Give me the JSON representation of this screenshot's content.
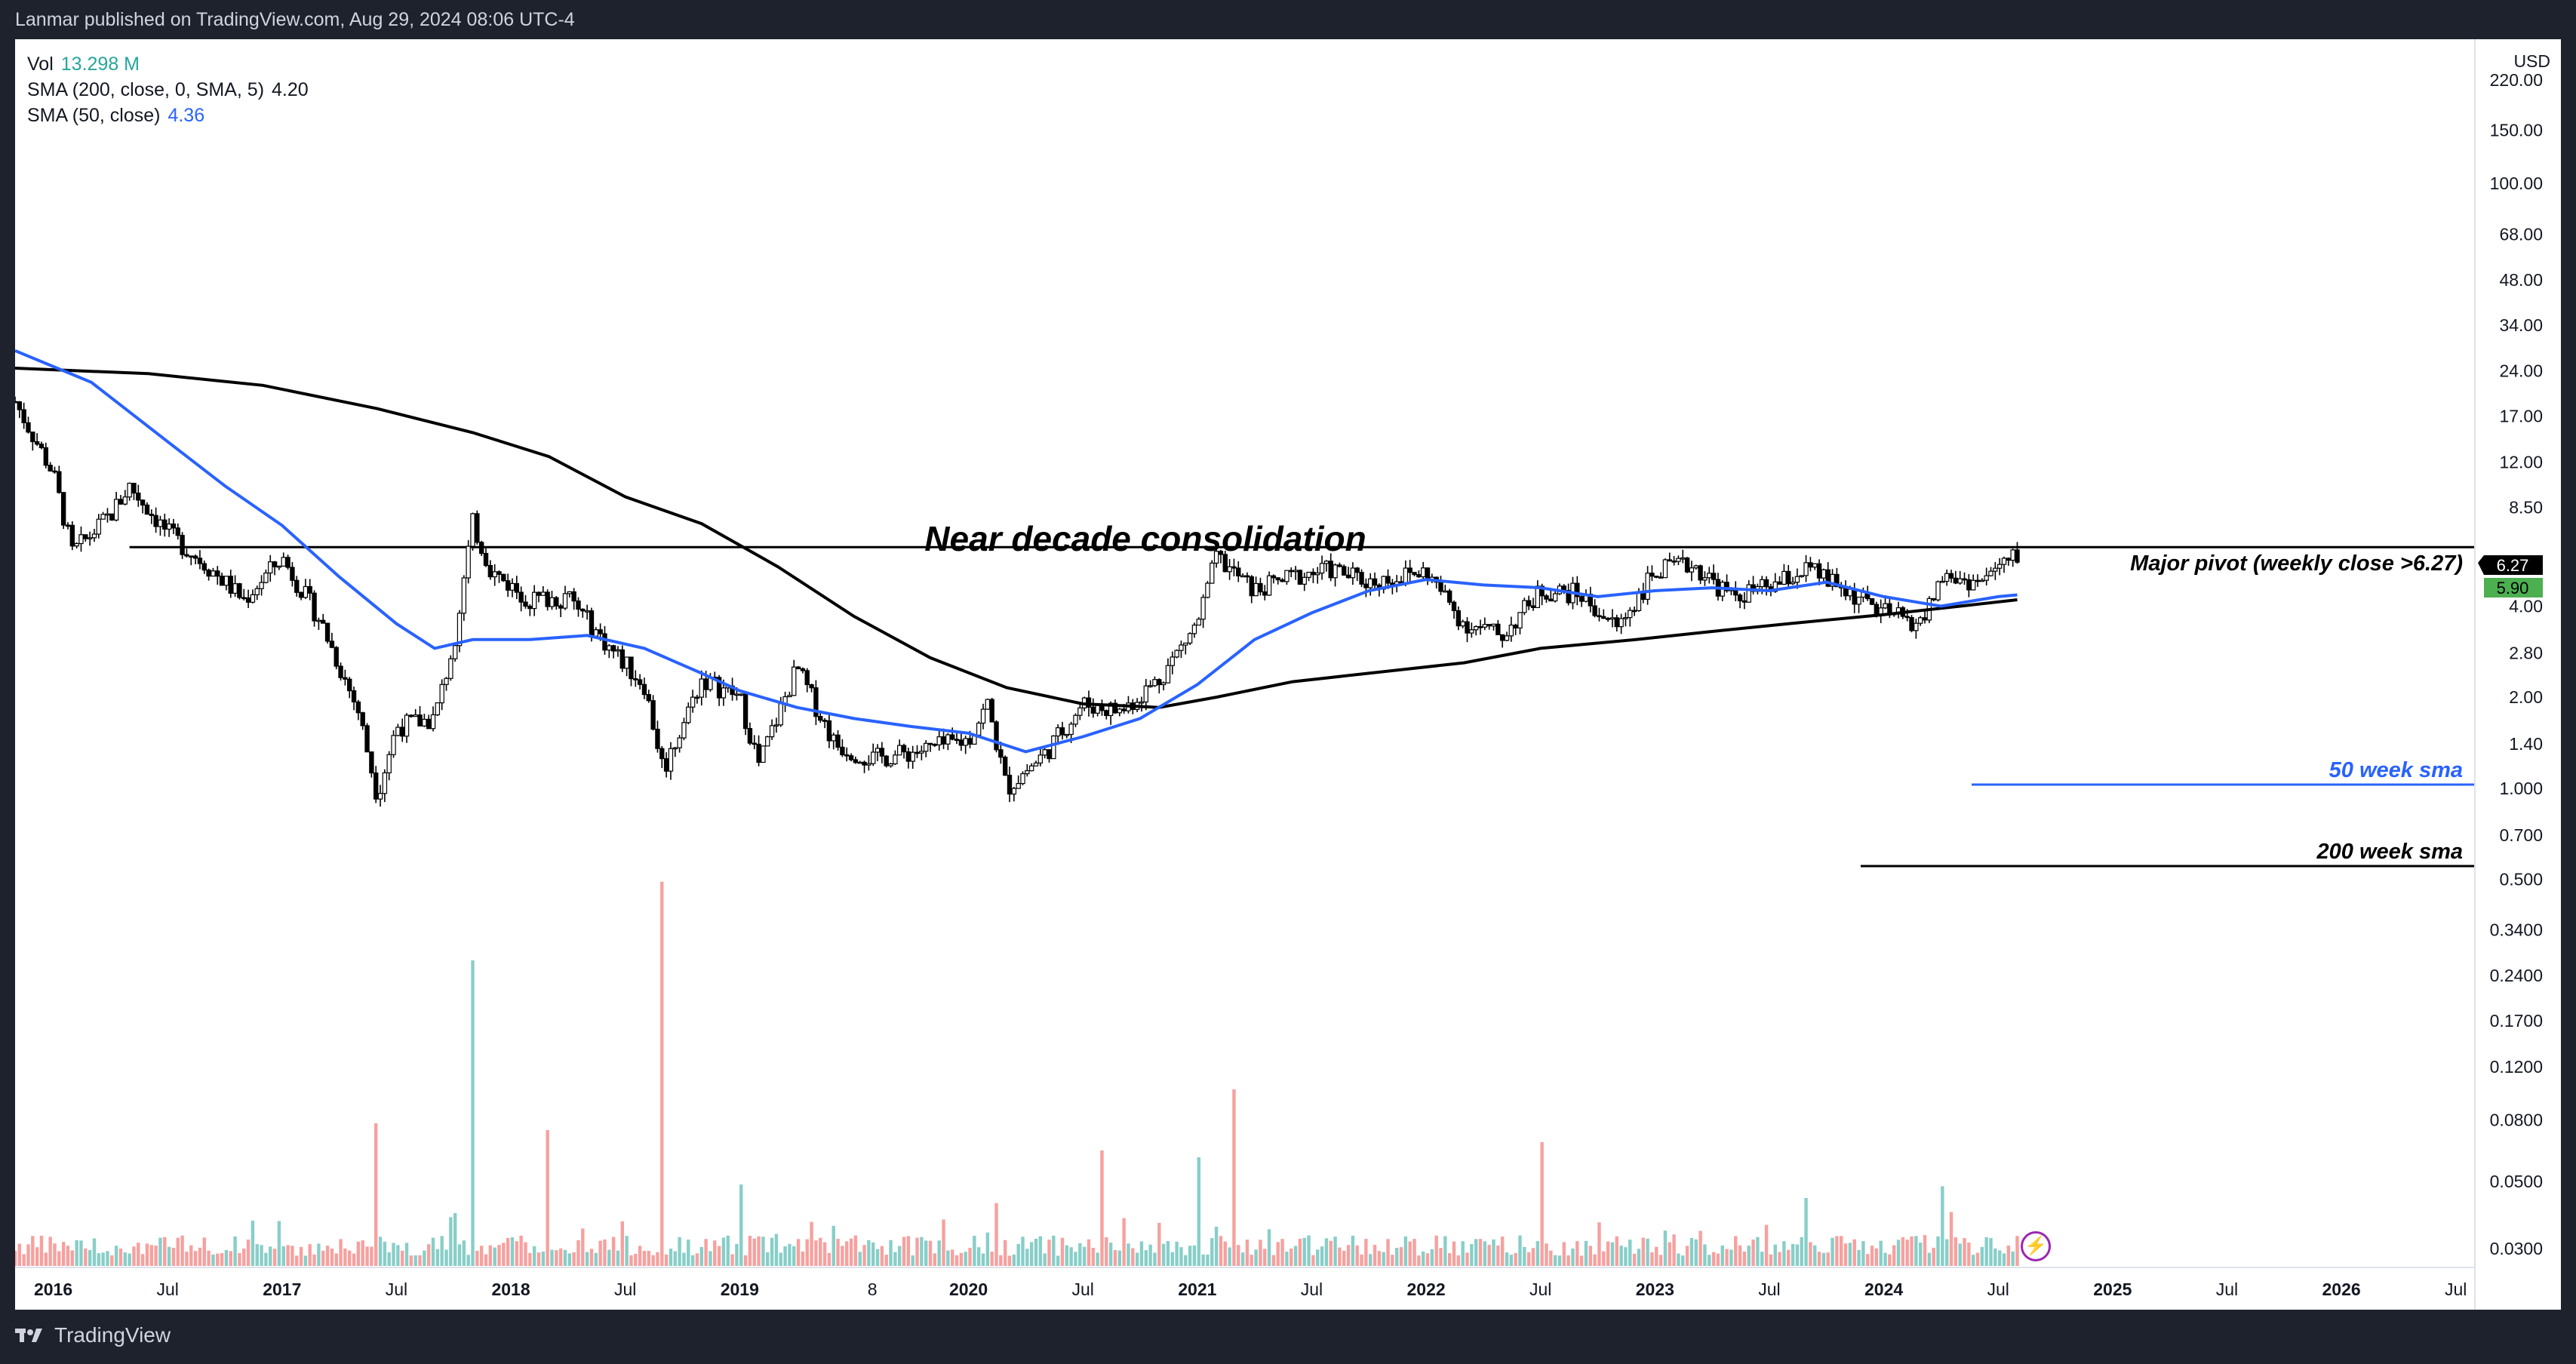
{
  "header": {
    "publisher_line": "Lanmar published on TradingView.com, Aug 29, 2024 08:06 UTC-4"
  },
  "footer": {
    "brand": "TradingView"
  },
  "legend": {
    "vol_label": "Vol",
    "vol_value": "13.298 M",
    "sma200_label": "SMA (200, close, 0, SMA, 5)",
    "sma200_value": "4.20",
    "sma50_label": "SMA (50, close)",
    "sma50_value": "4.36"
  },
  "price_axis": {
    "currency": "USD",
    "ticks": [
      "220.00",
      "150.00",
      "100.00",
      "68.00",
      "48.00",
      "34.00",
      "24.00",
      "17.00",
      "12.00",
      "8.50",
      "4.00",
      "2.80",
      "2.00",
      "1.40",
      "1.000",
      "0.700",
      "0.500",
      "0.3400",
      "0.2400",
      "0.1700",
      "0.1200",
      "0.0800",
      "0.0500",
      "0.0300"
    ],
    "last_price_label": "6.27",
    "current_label": "5.90"
  },
  "time_axis": {
    "labels": [
      "2016",
      "Jul",
      "2017",
      "Jul",
      "2018",
      "Jul",
      "2019",
      "8",
      "2020",
      "Jul",
      "2021",
      "Jul",
      "2022",
      "Jul",
      "2023",
      "Jul",
      "2024",
      "Jul",
      "2025",
      "Jul",
      "2026",
      "Jul"
    ],
    "bold_labels": [
      "2016",
      "2017",
      "2018",
      "2019",
      "2020",
      "2021",
      "2022",
      "2023",
      "2024",
      "2025",
      "2026"
    ]
  },
  "annotations": {
    "title": "Near decade consolidation",
    "pivot": "Major pivot (weekly close >6.27)",
    "sma50_note": "50 week sma",
    "sma200_note": "200 week sma"
  },
  "colors": {
    "up": "#26a69a",
    "down": "#ef5350",
    "sma50": "#2962ff",
    "sma200": "#000000",
    "pivot_badge": "#000000",
    "current_badge": "#4caf50"
  },
  "chart_data": {
    "type": "line",
    "title": "Near decade consolidation",
    "y_scale": "log",
    "ylim": [
      0.026,
      300
    ],
    "xlim": [
      "2015-11",
      "2026-08"
    ],
    "pivot_level": 6.27,
    "series": [
      {
        "name": "SMA (50, close)",
        "points": [
          [
            "2015-11",
            28
          ],
          [
            "2016-03",
            22
          ],
          [
            "2016-07",
            14
          ],
          [
            "2016-10",
            10
          ],
          [
            "2017-01",
            7.4
          ],
          [
            "2017-04",
            5
          ],
          [
            "2017-07",
            3.5
          ],
          [
            "2017-09",
            2.9
          ],
          [
            "2017-11",
            3.1
          ],
          [
            "2018-02",
            3.1
          ],
          [
            "2018-05",
            3.2
          ],
          [
            "2018-08",
            2.9
          ],
          [
            "2018-11",
            2.4
          ],
          [
            "2019-01",
            2.1
          ],
          [
            "2019-04",
            1.85
          ],
          [
            "2019-07",
            1.7
          ],
          [
            "2019-10",
            1.6
          ],
          [
            "2020-01",
            1.52
          ],
          [
            "2020-04",
            1.32
          ],
          [
            "2020-07",
            1.48
          ],
          [
            "2020-10",
            1.7
          ],
          [
            "2021-01",
            2.2
          ],
          [
            "2021-04",
            3.1
          ],
          [
            "2021-07",
            3.8
          ],
          [
            "2021-10",
            4.5
          ],
          [
            "2022-01",
            4.9
          ],
          [
            "2022-04",
            4.7
          ],
          [
            "2022-07",
            4.6
          ],
          [
            "2022-10",
            4.3
          ],
          [
            "2023-01",
            4.5
          ],
          [
            "2023-04",
            4.6
          ],
          [
            "2023-07",
            4.5
          ],
          [
            "2023-10",
            4.8
          ],
          [
            "2024-01",
            4.3
          ],
          [
            "2024-04",
            4.0
          ],
          [
            "2024-07",
            4.3
          ],
          [
            "2024-08",
            4.36
          ]
        ]
      },
      {
        "name": "SMA (200, close, 0, SMA, 5)",
        "points": [
          [
            "2015-11",
            24.5
          ],
          [
            "2016-06",
            23.5
          ],
          [
            "2016-12",
            21.5
          ],
          [
            "2017-06",
            18
          ],
          [
            "2017-11",
            15
          ],
          [
            "2018-03",
            12.5
          ],
          [
            "2018-07",
            9.2
          ],
          [
            "2018-11",
            7.5
          ],
          [
            "2019-03",
            5.4
          ],
          [
            "2019-07",
            3.7
          ],
          [
            "2019-11",
            2.7
          ],
          [
            "2020-03",
            2.15
          ],
          [
            "2020-07",
            1.9
          ],
          [
            "2020-11",
            1.85
          ],
          [
            "2021-02",
            2.0
          ],
          [
            "2021-06",
            2.25
          ],
          [
            "2021-10",
            2.4
          ],
          [
            "2022-03",
            2.6
          ],
          [
            "2022-07",
            2.9
          ],
          [
            "2022-12",
            3.1
          ],
          [
            "2023-04",
            3.3
          ],
          [
            "2023-08",
            3.5
          ],
          [
            "2024-01",
            3.75
          ],
          [
            "2024-05",
            4.0
          ],
          [
            "2024-08",
            4.2
          ]
        ]
      }
    ],
    "price_points": [
      [
        "2015-11",
        19
      ],
      [
        "2016-01",
        11
      ],
      [
        "2016-02",
        6
      ],
      [
        "2016-04",
        8
      ],
      [
        "2016-05",
        10
      ],
      [
        "2016-07",
        7
      ],
      [
        "2016-09",
        5.5
      ],
      [
        "2016-11",
        4.2
      ],
      [
        "2017-01",
        5.8
      ],
      [
        "2017-03",
        3.6
      ],
      [
        "2017-05",
        1.8
      ],
      [
        "2017-06",
        0.95
      ],
      [
        "2017-07",
        1.6
      ],
      [
        "2017-09",
        1.7
      ],
      [
        "2017-10",
        3
      ],
      [
        "2017-11",
        7.5
      ],
      [
        "2017-12",
        5.2
      ],
      [
        "2018-02",
        4.2
      ],
      [
        "2018-04",
        4.3
      ],
      [
        "2018-06",
        3
      ],
      [
        "2018-08",
        2.2
      ],
      [
        "2018-09",
        1.15
      ],
      [
        "2018-11",
        2.3
      ],
      [
        "2019-01",
        2.0
      ],
      [
        "2019-02",
        1.2
      ],
      [
        "2019-04",
        2.5
      ],
      [
        "2019-06",
        1.4
      ],
      [
        "2019-08",
        1.25
      ],
      [
        "2019-11",
        1.35
      ],
      [
        "2020-01",
        1.45
      ],
      [
        "2020-02",
        1.9
      ],
      [
        "2020-03",
        1.0
      ],
      [
        "2020-05",
        1.3
      ],
      [
        "2020-07",
        1.9
      ],
      [
        "2020-09",
        1.8
      ],
      [
        "2020-11",
        2.3
      ],
      [
        "2021-01",
        3.5
      ],
      [
        "2021-02",
        5.8
      ],
      [
        "2021-04",
        4.5
      ],
      [
        "2021-06",
        5.0
      ],
      [
        "2021-08",
        5.3
      ],
      [
        "2021-10",
        4.8
      ],
      [
        "2022-01",
        5.2
      ],
      [
        "2022-03",
        3.5
      ],
      [
        "2022-05",
        3.2
      ],
      [
        "2022-07",
        4.5
      ],
      [
        "2022-09",
        4.4
      ],
      [
        "2022-11",
        3.4
      ],
      [
        "2023-01",
        5.2
      ],
      [
        "2023-03",
        5.5
      ],
      [
        "2023-05",
        4.3
      ],
      [
        "2023-07",
        4.6
      ],
      [
        "2023-09",
        5.3
      ],
      [
        "2023-11",
        4.5
      ],
      [
        "2024-01",
        3.8
      ],
      [
        "2024-03",
        3.5
      ],
      [
        "2024-04",
        5.0
      ],
      [
        "2024-06",
        4.8
      ],
      [
        "2024-08",
        5.9
      ]
    ],
    "volume_points": [
      [
        "2017-06",
        0.21
      ],
      [
        "2017-11",
        0.45
      ],
      [
        "2018-03",
        0.2
      ],
      [
        "2018-09",
        0.52
      ],
      [
        "2019-01",
        0.12
      ],
      [
        "2020-08",
        0.17
      ],
      [
        "2021-01",
        0.16
      ],
      [
        "2021-03",
        0.26
      ],
      [
        "2022-07",
        0.14
      ],
      [
        "2023-09",
        0.1
      ],
      [
        "2024-04",
        0.11
      ]
    ],
    "volume_max": 13.298
  }
}
